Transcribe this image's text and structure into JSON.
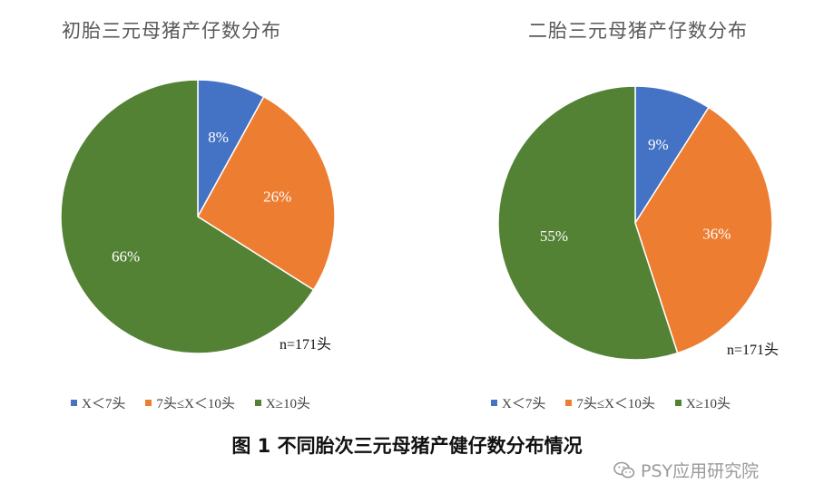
{
  "colors": {
    "blue": "#4472C4",
    "orange": "#ED7D31",
    "green": "#548235"
  },
  "chart_data": [
    {
      "type": "pie",
      "title": "初胎三元母猪产仔数分布",
      "categories": [
        "X＜7头",
        "7头≤X＜10头",
        "X≥10头"
      ],
      "values": [
        8,
        26,
        66
      ],
      "labels": [
        "8%",
        "26%",
        "66%"
      ],
      "note": "n=171头",
      "legend": "bottom"
    },
    {
      "type": "pie",
      "title": "二胎三元母猪产仔数分布",
      "categories": [
        "X＜7头",
        "7头≤X＜10头",
        "X≥10头"
      ],
      "values": [
        9,
        36,
        55
      ],
      "labels": [
        "9%",
        "36%",
        "55%"
      ],
      "note": "n=171头",
      "legend": "bottom"
    }
  ],
  "caption": "图 1 不同胎次三元母猪产健仔数分布情况",
  "watermark": {
    "text": "PSY应用研究院",
    "icon": "wechat-icon"
  }
}
